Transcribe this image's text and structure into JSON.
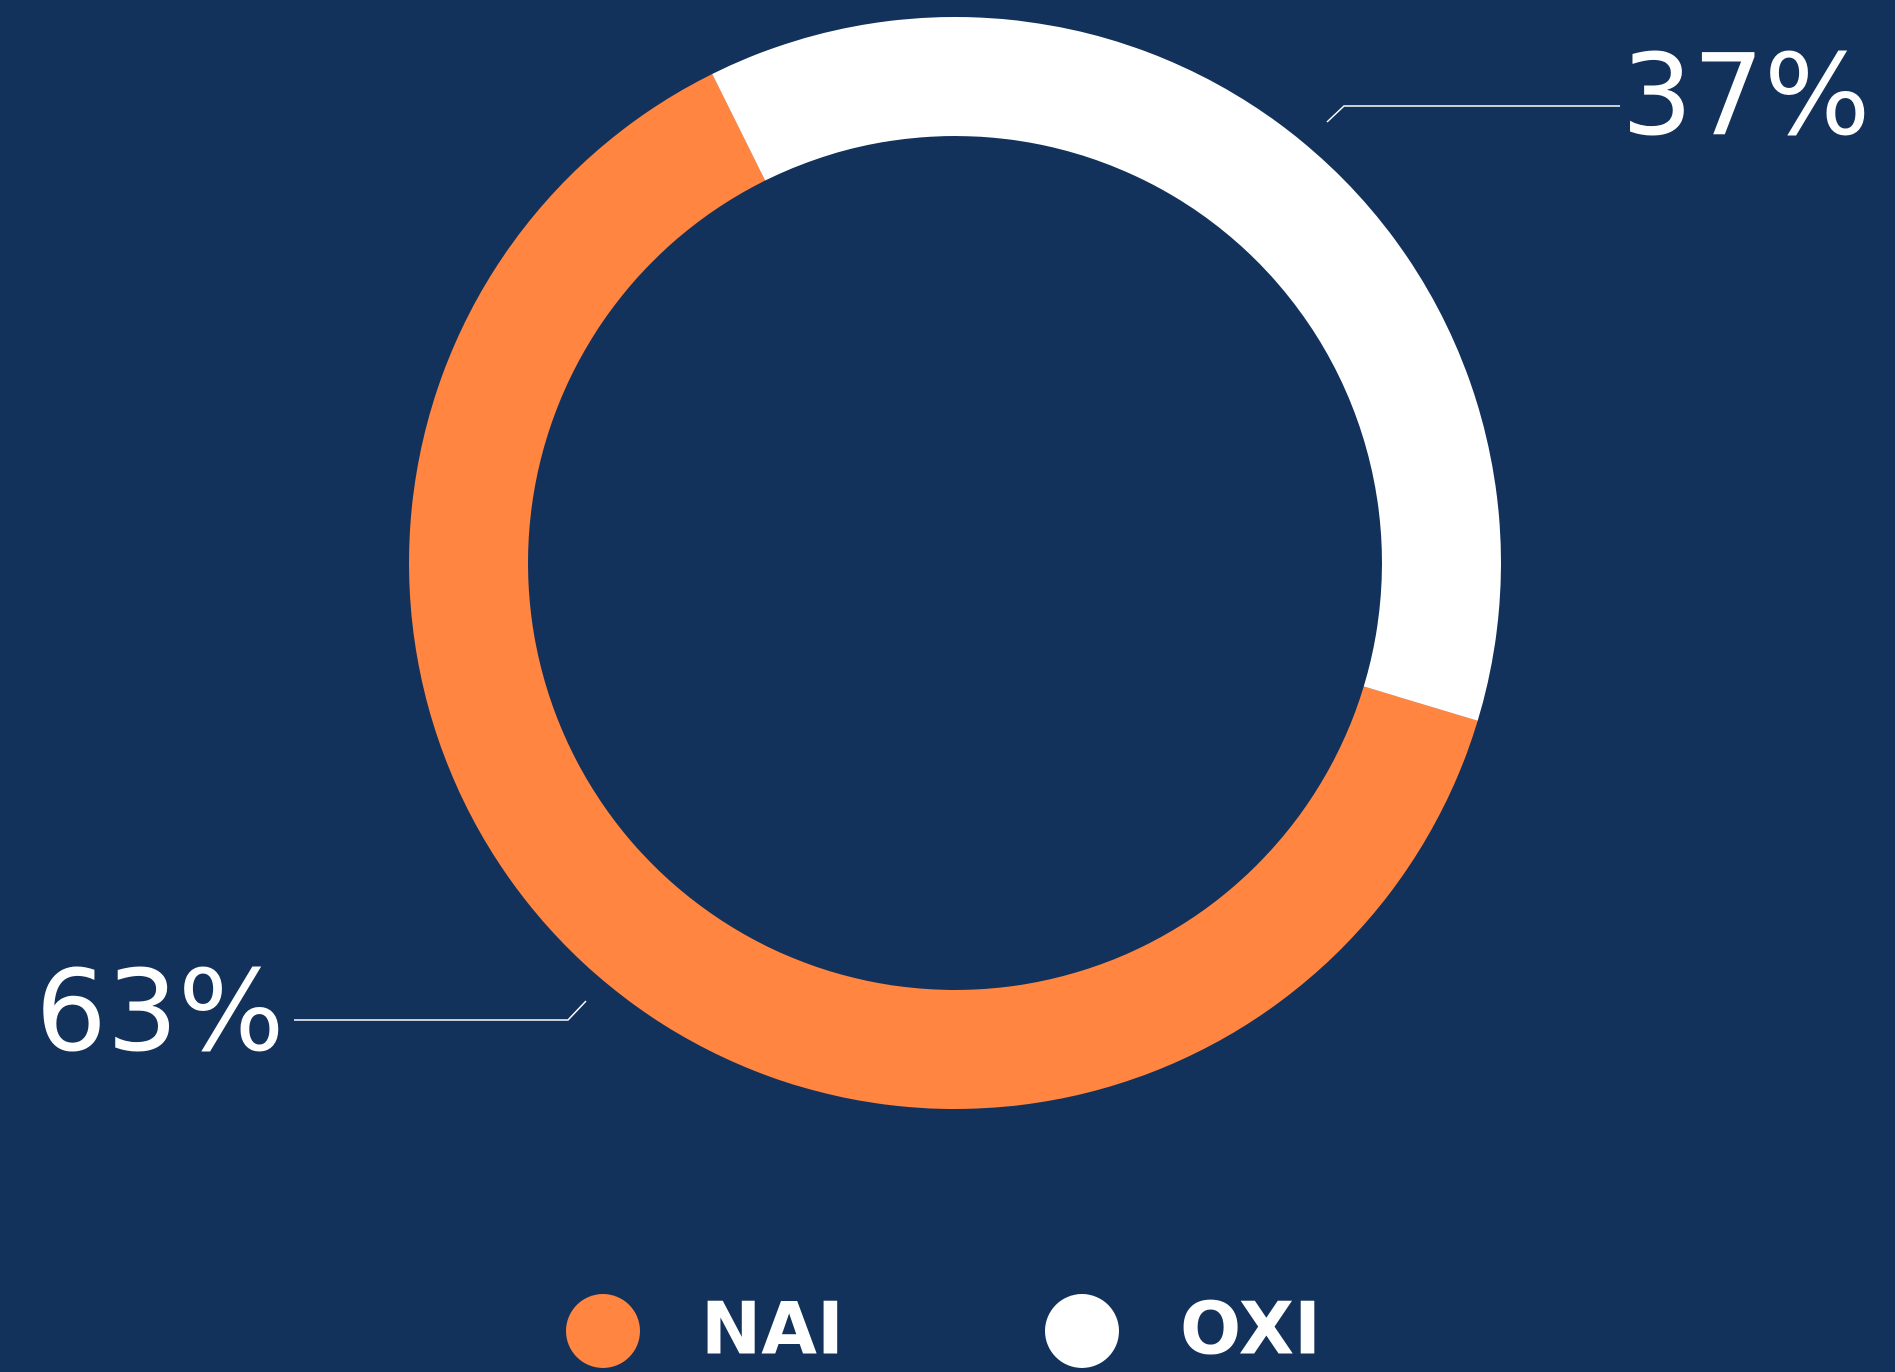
{
  "chart_data": {
    "type": "pie",
    "donut": true,
    "categories": [
      "NAI",
      "OXI"
    ],
    "values": [
      63,
      37
    ],
    "value_labels": [
      "63%",
      "37%"
    ],
    "colors": [
      "#ff8540",
      "#ffffff"
    ],
    "legend": "bottom"
  }
}
